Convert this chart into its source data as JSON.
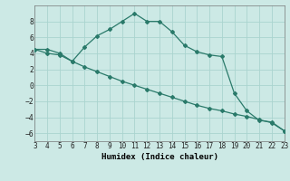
{
  "xlabel": "Humidex (Indice chaleur)",
  "background_color": "#cce9e5",
  "grid_color": "#aad4cf",
  "line_color": "#2a7a6a",
  "x_data": [
    3,
    4,
    5,
    6,
    7,
    8,
    9,
    10,
    11,
    12,
    13,
    14,
    15,
    16,
    17,
    18,
    19,
    20,
    21,
    22,
    23
  ],
  "y_curve1": [
    4.5,
    4.5,
    4.0,
    3.0,
    4.8,
    6.2,
    7.0,
    8.0,
    9.0,
    8.0,
    8.0,
    6.7,
    5.0,
    4.2,
    3.8,
    3.6,
    -1.0,
    -3.2,
    -4.4,
    -4.6,
    -5.7
  ],
  "y_curve2": [
    4.5,
    4.0,
    3.8,
    3.0,
    2.3,
    1.7,
    1.1,
    0.5,
    0.0,
    -0.5,
    -1.0,
    -1.5,
    -2.0,
    -2.5,
    -2.9,
    -3.2,
    -3.6,
    -3.9,
    -4.3,
    -4.7,
    -5.7
  ],
  "xlim": [
    3,
    23
  ],
  "ylim": [
    -7,
    10
  ],
  "xticks": [
    3,
    4,
    5,
    6,
    7,
    8,
    9,
    10,
    11,
    12,
    13,
    14,
    15,
    16,
    17,
    18,
    19,
    20,
    21,
    22,
    23
  ],
  "yticks": [
    -6,
    -4,
    -2,
    0,
    2,
    4,
    6,
    8
  ],
  "marker": "D",
  "markersize": 2.0,
  "linewidth": 0.9,
  "tick_fontsize": 5.5,
  "xlabel_fontsize": 6.5
}
